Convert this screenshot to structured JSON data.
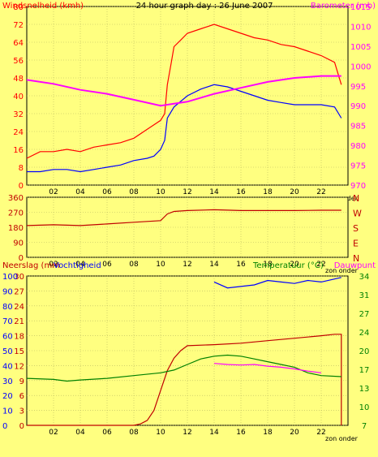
{
  "chart_data": [
    {
      "type": "line",
      "title": "24 hour graph day : 26 June 2007",
      "ylabel": "Windsnelheid (kmh)",
      "ylabel_right": "Barometer (mb)",
      "ylim": [
        0,
        80
      ],
      "ylim_right": [
        970,
        1015
      ],
      "yticks": [
        "0",
        "8",
        "16",
        "24",
        "32",
        "40",
        "48",
        "56",
        "64",
        "72",
        "80"
      ],
      "yticks_right": [
        "970",
        "975",
        "980",
        "985",
        "990",
        "995",
        "1000",
        "1005",
        "1010",
        "1015"
      ],
      "xticks": [
        "02",
        "04",
        "06",
        "08",
        "10",
        "12",
        "14",
        "16",
        "18",
        "20",
        "22"
      ],
      "x_note": "zon onder",
      "grid": true,
      "series": [
        {
          "color": "#ff0000",
          "axis": "left",
          "points": [
            [
              0,
              12
            ],
            [
              1,
              15
            ],
            [
              2,
              15
            ],
            [
              3,
              16
            ],
            [
              4,
              15
            ],
            [
              5,
              17
            ],
            [
              6,
              18
            ],
            [
              7,
              19
            ],
            [
              8,
              21
            ],
            [
              9,
              25
            ],
            [
              9.5,
              27
            ],
            [
              10,
              29
            ],
            [
              10.3,
              32
            ],
            [
              10.5,
              45
            ],
            [
              10.8,
              55
            ],
            [
              11,
              62
            ],
            [
              11.5,
              65
            ],
            [
              12,
              68
            ],
            [
              13,
              70
            ],
            [
              14,
              72
            ],
            [
              15,
              70
            ],
            [
              16,
              68
            ],
            [
              17,
              66
            ],
            [
              18,
              65
            ],
            [
              19,
              63
            ],
            [
              20,
              62
            ],
            [
              21,
              60
            ],
            [
              22,
              58
            ],
            [
              23,
              55
            ],
            [
              23.5,
              45
            ]
          ]
        },
        {
          "color": "#0000ff",
          "axis": "left",
          "points": [
            [
              0,
              6
            ],
            [
              1,
              6
            ],
            [
              2,
              7
            ],
            [
              3,
              7
            ],
            [
              4,
              6
            ],
            [
              5,
              7
            ],
            [
              6,
              8
            ],
            [
              7,
              9
            ],
            [
              8,
              11
            ],
            [
              9,
              12
            ],
            [
              9.5,
              13
            ],
            [
              10,
              16
            ],
            [
              10.3,
              20
            ],
            [
              10.5,
              30
            ],
            [
              11,
              35
            ],
            [
              12,
              40
            ],
            [
              13,
              43
            ],
            [
              14,
              45
            ],
            [
              15,
              44
            ],
            [
              16,
              42
            ],
            [
              17,
              40
            ],
            [
              18,
              38
            ],
            [
              19,
              37
            ],
            [
              20,
              36
            ],
            [
              21,
              36
            ],
            [
              22,
              36
            ],
            [
              23,
              35
            ],
            [
              23.5,
              30
            ]
          ]
        },
        {
          "color": "#ff00ff",
          "axis": "right",
          "points": [
            [
              0,
              996.5
            ],
            [
              2,
              995.5
            ],
            [
              4,
              994
            ],
            [
              6,
              993
            ],
            [
              8,
              991.5
            ],
            [
              10,
              990
            ],
            [
              12,
              991
            ],
            [
              14,
              993
            ],
            [
              16,
              994.5
            ],
            [
              18,
              996
            ],
            [
              20,
              997
            ],
            [
              22,
              997.5
            ],
            [
              23.5,
              997.5
            ]
          ]
        }
      ]
    },
    {
      "type": "line",
      "ylim": [
        0,
        360
      ],
      "yticks": [
        "0",
        "90",
        "180",
        "270",
        "360"
      ],
      "compass": [
        "N",
        "W",
        "S",
        "E",
        "N"
      ],
      "xticks": [
        "02",
        "04",
        "06",
        "08",
        "10",
        "12",
        "14",
        "16",
        "18",
        "20",
        "22"
      ],
      "x_note": "zon onder",
      "grid": true,
      "series": [
        {
          "color": "#c00000",
          "points": [
            [
              0,
              190
            ],
            [
              2,
              195
            ],
            [
              4,
              190
            ],
            [
              6,
              200
            ],
            [
              8,
              210
            ],
            [
              10,
              220
            ],
            [
              10.5,
              260
            ],
            [
              11,
              275
            ],
            [
              12,
              280
            ],
            [
              14,
              285
            ],
            [
              16,
              280
            ],
            [
              18,
              280
            ],
            [
              20,
              280
            ],
            [
              22,
              282
            ],
            [
              23.5,
              282
            ]
          ]
        }
      ]
    },
    {
      "type": "line",
      "ylabel": "Neerslag (mm",
      "ylabel2": "Vochtigheid",
      "ylabel_right": "Temperatuur (°C)",
      "ylabel_right2": "Dauwpunt",
      "ylim": [
        0,
        30
      ],
      "ylim_right": [
        7,
        34
      ],
      "yticks_left_outer": [
        "0",
        "10",
        "20",
        "30",
        "40",
        "50",
        "60",
        "70",
        "80",
        "90",
        "100"
      ],
      "yticks_left_inner": [
        "0",
        "3",
        "6",
        "9",
        "12",
        "15",
        "18",
        "21",
        "24",
        "27",
        "30"
      ],
      "yticks_right": [
        "7",
        "10",
        "13",
        "17",
        "20",
        "24",
        "27",
        "31",
        "34"
      ],
      "xticks": [
        "02",
        "04",
        "06",
        "08",
        "10",
        "12",
        "14",
        "16",
        "18",
        "20",
        "22"
      ],
      "x_note": "zon onder",
      "grid": true,
      "series": [
        {
          "color": "#c00000",
          "axis": "left",
          "points": [
            [
              0,
              0
            ],
            [
              8,
              0
            ],
            [
              8.5,
              0.3
            ],
            [
              9,
              1
            ],
            [
              9.5,
              3
            ],
            [
              10,
              7
            ],
            [
              10.5,
              11
            ],
            [
              11,
              13.5
            ],
            [
              11.5,
              15
            ],
            [
              12,
              16
            ],
            [
              14,
              16.2
            ],
            [
              16,
              16.5
            ],
            [
              18,
              17
            ],
            [
              20,
              17.5
            ],
            [
              22,
              18
            ],
            [
              23,
              18.3
            ],
            [
              23.5,
              18.3
            ],
            [
              23.5,
              0
            ]
          ]
        },
        {
          "color": "#008000",
          "axis": "right",
          "points": [
            [
              0,
              15.5
            ],
            [
              2,
              15.3
            ],
            [
              3,
              15
            ],
            [
              4,
              15.2
            ],
            [
              6,
              15.5
            ],
            [
              8,
              16
            ],
            [
              10,
              16.5
            ],
            [
              11,
              17
            ],
            [
              12,
              18
            ],
            [
              13,
              19
            ],
            [
              14,
              19.5
            ],
            [
              15,
              19.7
            ],
            [
              16,
              19.5
            ],
            [
              17,
              19
            ],
            [
              18,
              18.5
            ],
            [
              19,
              18
            ],
            [
              20,
              17.5
            ],
            [
              21,
              16.5
            ],
            [
              22,
              16
            ],
            [
              23.5,
              15.8
            ]
          ]
        },
        {
          "color": "#ff00ff",
          "axis": "right",
          "points": [
            [
              14,
              18.2
            ],
            [
              15,
              18.0
            ],
            [
              16,
              17.9
            ],
            [
              17,
              18.0
            ],
            [
              18,
              17.7
            ],
            [
              19,
              17.5
            ],
            [
              20,
              17.2
            ],
            [
              21,
              16.8
            ],
            [
              22,
              16.5
            ]
          ]
        },
        {
          "color": "#0000ff",
          "axis": "humidity",
          "points": [
            [
              14,
              96
            ],
            [
              15,
              92
            ],
            [
              16,
              93
            ],
            [
              17,
              94
            ],
            [
              18,
              97
            ],
            [
              19,
              96
            ],
            [
              20,
              95
            ],
            [
              21,
              97
            ],
            [
              22,
              96
            ],
            [
              23,
              98
            ],
            [
              23.5,
              99
            ]
          ]
        }
      ]
    }
  ]
}
